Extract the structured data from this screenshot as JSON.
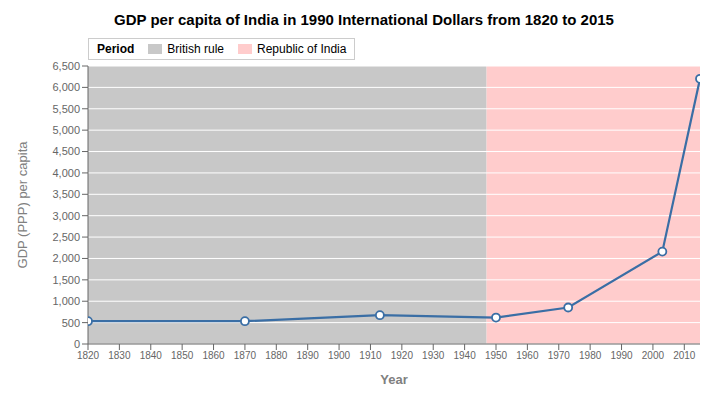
{
  "chart_data": {
    "type": "line",
    "title": "GDP per capita of India in 1990 International Dollars from 1820 to 2015",
    "x_label": "Year",
    "y_label": "GDP (PPP) per capita",
    "x": [
      1820,
      1870,
      1913,
      1950,
      1973,
      2003,
      2015
    ],
    "values": [
      533,
      533,
      673,
      619,
      853,
      2160,
      6200
    ],
    "color": "#3a6ea5",
    "marker": "circle",
    "xlim": [
      1820,
      2015
    ],
    "xticks": [
      1820,
      1830,
      1840,
      1850,
      1860,
      1870,
      1880,
      1890,
      1900,
      1910,
      1920,
      1930,
      1940,
      1950,
      1960,
      1970,
      1980,
      1990,
      2000,
      2010
    ],
    "ylim": [
      0,
      6500
    ],
    "yticks": [
      0,
      500,
      {
        "value": 1000,
        "label": "1,000"
      },
      {
        "value": 1500,
        "label": "1,500"
      },
      {
        "value": 2000,
        "label": "2,000"
      },
      {
        "value": 2500,
        "label": "2,500"
      },
      {
        "value": 3000,
        "label": "3,000"
      },
      {
        "value": 3500,
        "label": "3,500"
      },
      {
        "value": 4000,
        "label": "4,000"
      },
      {
        "value": 4500,
        "label": "4,500"
      },
      {
        "value": 5000,
        "label": "5,000"
      },
      {
        "value": 5500,
        "label": "5,500"
      },
      {
        "value": 6000,
        "label": "6,000"
      },
      {
        "value": 6500,
        "label": "6,500"
      }
    ],
    "grid": true,
    "legend": "upper left",
    "legend_title": "Period",
    "periods": [
      {
        "name": "British rule",
        "start": 1820,
        "end": 1947,
        "color": "#c8c8c8"
      },
      {
        "name": "Republic of India",
        "start": 1947,
        "end": 2015,
        "color": "#ffcccc"
      }
    ]
  }
}
